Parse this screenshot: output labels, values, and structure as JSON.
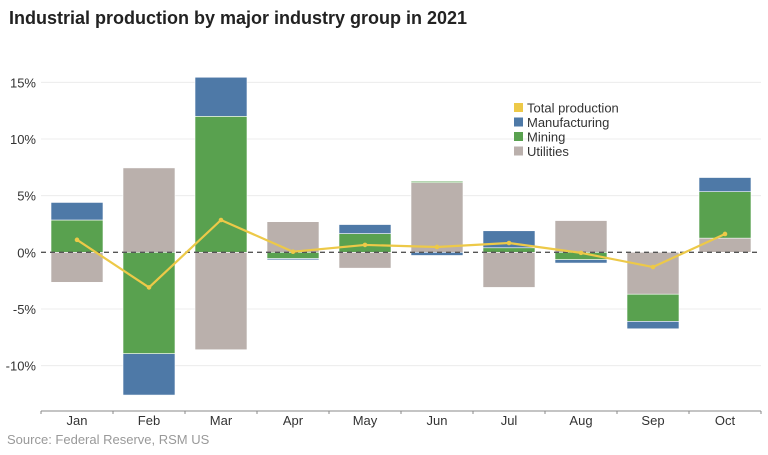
{
  "chart_data": {
    "type": "bar",
    "stacked": true,
    "title": "Industrial production by major industry group in 2021",
    "source": "Source: Federal Reserve, RSM US",
    "xlabel": "",
    "ylabel": "",
    "categories": [
      "Jan",
      "Feb",
      "Mar",
      "Apr",
      "May",
      "Jun",
      "Jul",
      "Aug",
      "Sep",
      "Oct"
    ],
    "ylim": [
      -13.8,
      16
    ],
    "yticks": [
      15,
      10,
      5,
      0,
      -5,
      -10
    ],
    "ytick_labels": [
      "15%",
      "10%",
      "5%",
      "0%",
      "-5%",
      "-10%"
    ],
    "grid": true,
    "zero_line": "dashed",
    "legend_position": "top-right",
    "series": [
      {
        "name": "Utilities",
        "type": "bar",
        "color": "#bab0ac",
        "values": [
          -2.65,
          7.45,
          -8.6,
          2.7,
          -1.4,
          6.15,
          -3.1,
          2.8,
          -3.7,
          1.25
        ]
      },
      {
        "name": "Mining",
        "type": "bar",
        "color": "#59a14f",
        "values": [
          2.85,
          -8.95,
          12.0,
          -0.55,
          1.65,
          0.12,
          0.4,
          -0.65,
          -2.4,
          4.1
        ]
      },
      {
        "name": "Manufacturing",
        "type": "bar",
        "color": "#4e79a7",
        "values": [
          1.55,
          -3.65,
          3.45,
          -0.12,
          0.8,
          -0.28,
          1.5,
          -0.3,
          -0.65,
          1.25
        ]
      },
      {
        "name": "Total production",
        "type": "line",
        "color": "#edc948",
        "values": [
          1.1,
          -3.1,
          2.85,
          0.05,
          0.65,
          0.47,
          0.82,
          -0.05,
          -1.3,
          1.62
        ]
      }
    ],
    "legend_order": [
      "Total production",
      "Manufacturing",
      "Mining",
      "Utilities"
    ]
  }
}
